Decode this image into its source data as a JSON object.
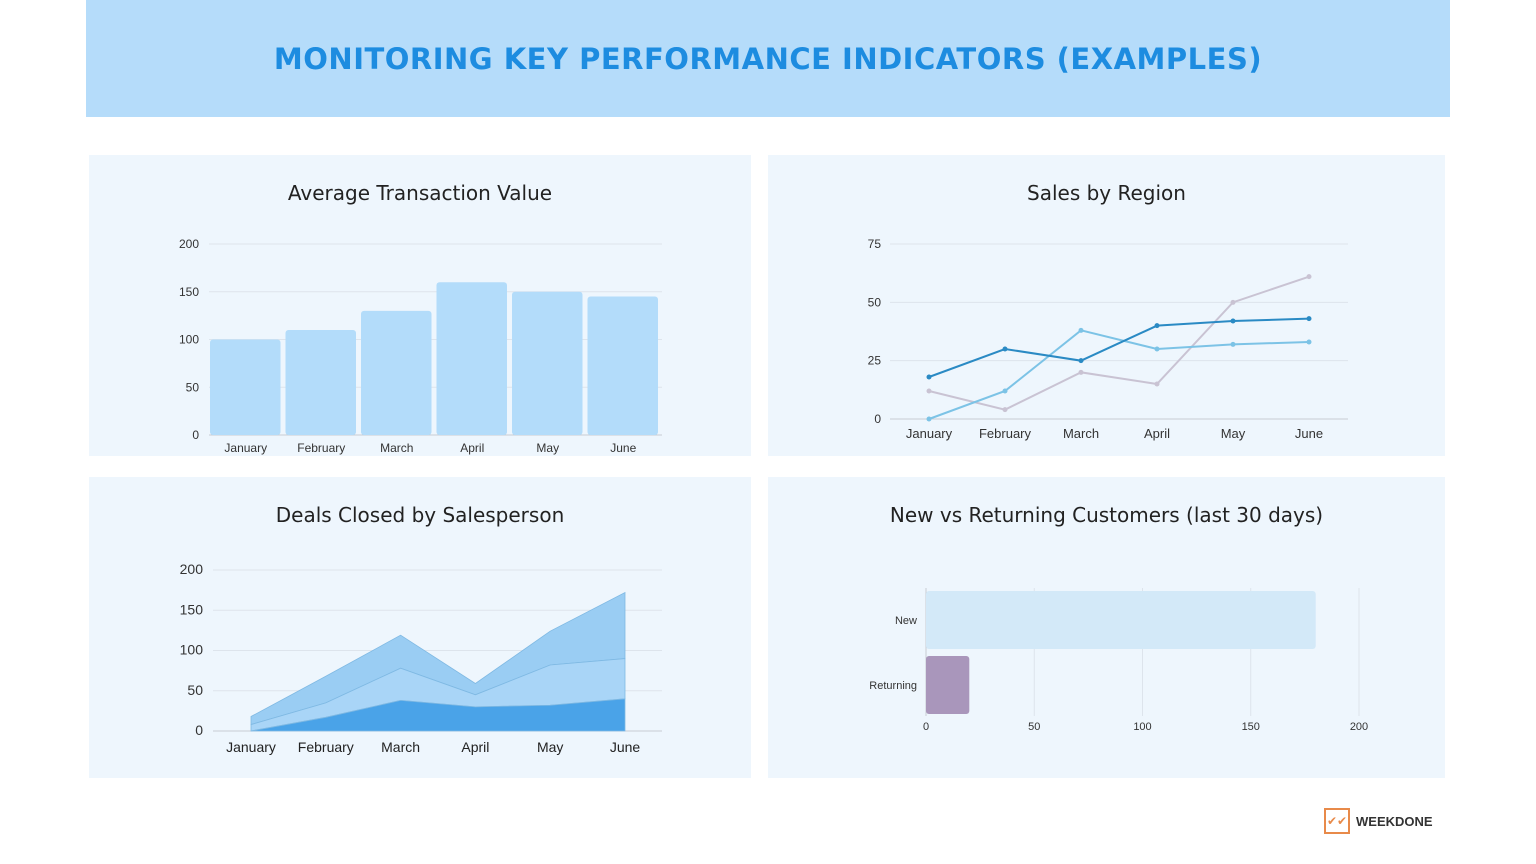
{
  "header": {
    "title": "MONITORING KEY PERFORMANCE INDICATORS (EXAMPLES)"
  },
  "logo": {
    "text": "WEEKDONE",
    "accent": "#e88a4a"
  },
  "chart_data": [
    {
      "type": "bar",
      "title": "Average Transaction Value",
      "categories": [
        "January",
        "February",
        "March",
        "April",
        "May",
        "June"
      ],
      "values": [
        100,
        110,
        130,
        160,
        150,
        145
      ],
      "ylim": [
        0,
        200
      ],
      "yticks": [
        0,
        50,
        100,
        150,
        200
      ],
      "grid": true,
      "color": "#b3dcfa"
    },
    {
      "type": "line",
      "title": "Sales by Region",
      "categories": [
        "January",
        "February",
        "March",
        "April",
        "May",
        "June"
      ],
      "ylim": [
        0,
        75
      ],
      "yticks": [
        0,
        25,
        50,
        75
      ],
      "grid": true,
      "series": [
        {
          "values": [
            18,
            30,
            25,
            40,
            42,
            43
          ],
          "color": "#2a8ac4"
        },
        {
          "values": [
            0,
            12,
            38,
            30,
            32,
            33
          ],
          "color": "#7cc3e6"
        },
        {
          "values": [
            12,
            4,
            20,
            15,
            50,
            61
          ],
          "color": "#c9c3d3"
        }
      ]
    },
    {
      "type": "area",
      "stacked": true,
      "title": "Deals Closed by Salesperson",
      "categories": [
        "January",
        "February",
        "March",
        "April",
        "May",
        "June"
      ],
      "ylim": [
        0,
        200
      ],
      "yticks": [
        0,
        50,
        100,
        150,
        200
      ],
      "grid": true,
      "series": [
        {
          "values": [
            0,
            17,
            38,
            30,
            32,
            40
          ],
          "color": "#4aa3e8"
        },
        {
          "values": [
            8,
            18,
            40,
            15,
            50,
            50
          ],
          "color": "#a9d5f7"
        },
        {
          "values": [
            10,
            33,
            41,
            14,
            42,
            82
          ],
          "color": "#9acdf3"
        }
      ]
    },
    {
      "type": "bar",
      "orientation": "horizontal",
      "title": "New vs Returning Customers (last 30 days)",
      "categories": [
        "New",
        "Returning"
      ],
      "values": [
        180,
        20
      ],
      "colors": [
        "#d3e9f8",
        "#a996bb"
      ],
      "xlim": [
        0,
        200
      ],
      "xticks": [
        0,
        50,
        100,
        150,
        200
      ],
      "grid": true
    }
  ]
}
